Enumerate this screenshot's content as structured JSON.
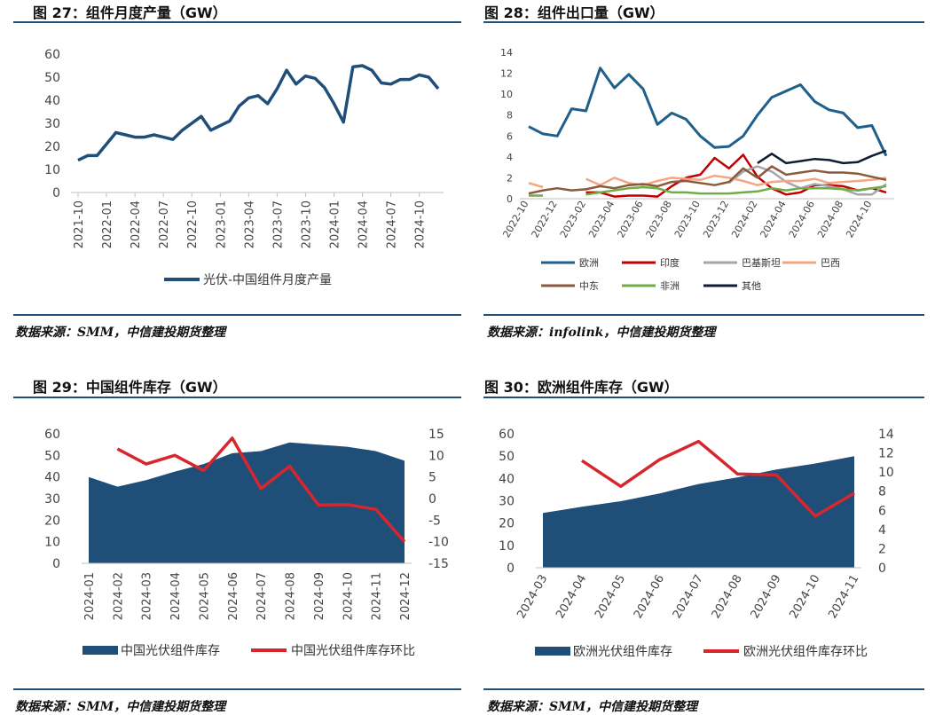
{
  "titles": {
    "c27": "图 27：组件月度产量（GW）",
    "c28": "图 28：组件出口量（GW）",
    "c29": "图 29：中国组件库存（GW）",
    "c30": "图 30：欧洲组件库存（GW）"
  },
  "sources": {
    "c27": "数据来源：SMM，中信建投期货整理",
    "c28": "数据来源：infolink，中信建投期货整理",
    "c29": "数据来源：SMM，中信建投期货整理",
    "c30": "数据来源：SMM，中信建投期货整理"
  },
  "colors": {
    "navy": "#1f4e79",
    "red": "#d7262e",
    "rule": "#1f4e79"
  },
  "chart_data": [
    {
      "id": "c27",
      "type": "line",
      "title": "图 27：组件月度产量（GW）",
      "ylim": [
        0,
        60
      ],
      "yticks": [
        0,
        10,
        20,
        30,
        40,
        50,
        60
      ],
      "x_tick_labels": [
        "2021-10",
        "2022-01",
        "2022-04",
        "2022-07",
        "2022-10",
        "2023-01",
        "2023-04",
        "2023-07",
        "2023-10",
        "2024-01",
        "2024-04",
        "2024-07",
        "2024-10"
      ],
      "x": [
        "2021-10",
        "2021-11",
        "2021-12",
        "2022-01",
        "2022-02",
        "2022-03",
        "2022-04",
        "2022-05",
        "2022-06",
        "2022-07",
        "2022-08",
        "2022-09",
        "2022-10",
        "2022-11",
        "2022-12",
        "2023-01",
        "2023-02",
        "2023-03",
        "2023-04",
        "2023-05",
        "2023-06",
        "2023-07",
        "2023-08",
        "2023-09",
        "2023-10",
        "2023-11",
        "2023-12",
        "2024-01",
        "2024-02",
        "2024-03",
        "2024-04",
        "2024-05",
        "2024-06",
        "2024-07",
        "2024-08",
        "2024-09",
        "2024-10",
        "2024-11",
        "2024-12"
      ],
      "series": [
        {
          "name": "光伏-中国组件月度产量",
          "color": "#1f4e79",
          "values": [
            14,
            16,
            16,
            21,
            26,
            25,
            24,
            24,
            25,
            24,
            23,
            27,
            30,
            33,
            27,
            29,
            31,
            37.5,
            41,
            42,
            38.5,
            45,
            53,
            47,
            50.5,
            49.5,
            45.5,
            38.5,
            30.5,
            54.5,
            55,
            53,
            47.5,
            47,
            49,
            49,
            51,
            50,
            45
          ]
        }
      ],
      "legend": "bottom"
    },
    {
      "id": "c28",
      "type": "line",
      "title": "图 28：组件出口量（GW）",
      "ylim": [
        0,
        14
      ],
      "yticks": [
        0,
        2,
        4,
        6,
        8,
        10,
        12,
        14
      ],
      "x_tick_labels": [
        "2022-10",
        "2022-12",
        "2023-02",
        "2023-04",
        "2023-06",
        "2023-08",
        "2023-10",
        "2023-12",
        "2024-02",
        "2024-04",
        "2024-06",
        "2024-08",
        "2024-10"
      ],
      "x": [
        "2022-10",
        "2022-11",
        "2022-12",
        "2023-01",
        "2023-02",
        "2023-03",
        "2023-04",
        "2023-05",
        "2023-06",
        "2023-07",
        "2023-08",
        "2023-09",
        "2023-10",
        "2023-11",
        "2023-12",
        "2024-01",
        "2024-02",
        "2024-03",
        "2024-04",
        "2024-05",
        "2024-06",
        "2024-07",
        "2024-08",
        "2024-09",
        "2024-10",
        "2024-11"
      ],
      "series": [
        {
          "name": "欧洲",
          "color": "#1f5f8b",
          "values": [
            6.9,
            6.2,
            6.0,
            8.6,
            8.4,
            12.5,
            10.6,
            11.9,
            10.5,
            7.1,
            8.2,
            7.6,
            6.0,
            4.9,
            5.0,
            6.0,
            8.0,
            9.7,
            10.3,
            10.9,
            9.3,
            8.5,
            8.2,
            6.8,
            7.0,
            4.1
          ]
        },
        {
          "name": "印度",
          "color": "#c00000",
          "values": [
            null,
            null,
            null,
            null,
            0.6,
            0.6,
            0.2,
            0.3,
            0.3,
            0.2,
            1.2,
            2.0,
            2.3,
            3.9,
            2.9,
            4.2,
            2.1,
            1.0,
            0.4,
            0.6,
            1.3,
            1.3,
            1.2,
            0.8,
            1.0,
            0.6
          ]
        },
        {
          "name": "巴基斯坦",
          "color": "#a6a6a6",
          "values": [
            null,
            null,
            null,
            null,
            null,
            null,
            null,
            null,
            null,
            null,
            null,
            null,
            null,
            null,
            1.5,
            2.6,
            3.1,
            2.6,
            1.6,
            1.0,
            1.4,
            1.2,
            0.9,
            0.4,
            0.4,
            1.4
          ]
        },
        {
          "name": "巴西",
          "color": "#f4a582",
          "values": [
            1.5,
            1.1,
            null,
            null,
            1.9,
            1.3,
            2.0,
            1.5,
            1.3,
            1.7,
            2.0,
            1.9,
            1.8,
            2.2,
            2.0,
            1.7,
            1.3,
            1.6,
            1.7,
            1.7,
            1.9,
            1.5,
            1.6,
            1.7,
            1.8,
            2.0
          ]
        },
        {
          "name": "中东",
          "color": "#8b5a3c",
          "values": [
            0.5,
            0.8,
            1.0,
            0.8,
            0.9,
            1.2,
            1.0,
            1.3,
            1.4,
            1.2,
            1.6,
            1.7,
            1.5,
            1.3,
            1.6,
            2.9,
            2.0,
            3.1,
            2.3,
            2.5,
            2.7,
            2.5,
            2.5,
            2.4,
            2.1,
            1.8
          ]
        },
        {
          "name": "非洲",
          "color": "#70ad47",
          "values": [
            0.3,
            0.3,
            null,
            null,
            0.4,
            0.6,
            0.8,
            1.0,
            1.1,
            1.0,
            0.6,
            0.6,
            0.5,
            0.5,
            0.5,
            0.6,
            0.7,
            1.0,
            0.8,
            1.0,
            1.0,
            1.0,
            0.9,
            0.8,
            1.0,
            1.2
          ]
        },
        {
          "name": "其他",
          "color": "#0d1e33",
          "values": [
            null,
            null,
            null,
            null,
            null,
            null,
            null,
            null,
            null,
            null,
            null,
            null,
            null,
            null,
            null,
            null,
            3.4,
            4.3,
            3.4,
            3.6,
            3.8,
            3.7,
            3.4,
            3.5,
            4.1,
            4.6
          ]
        }
      ],
      "legend": "bottom"
    },
    {
      "id": "c29",
      "type": "area",
      "title": "图 29：中国组件库存（GW）",
      "ylim": [
        0,
        60
      ],
      "yticks": [
        0,
        10,
        20,
        30,
        40,
        50,
        60
      ],
      "y2lim": [
        -15,
        15
      ],
      "y2ticks": [
        -15,
        -10,
        -5,
        0,
        5,
        10,
        15
      ],
      "x": [
        "2024-01",
        "2024-02",
        "2024-03",
        "2024-04",
        "2024-05",
        "2024-06",
        "2024-07",
        "2024-08",
        "2024-09",
        "2024-10",
        "2024-11",
        "2024-12"
      ],
      "series": [
        {
          "name": "中国光伏组件库存",
          "color": "#1f4e79",
          "kind": "area",
          "axis": "left",
          "values": [
            40,
            35.5,
            38.5,
            42.5,
            46,
            51,
            52,
            56,
            55,
            54,
            52,
            47.5
          ]
        },
        {
          "name": "中国光伏组件库存环比",
          "color": "#d7262e",
          "kind": "line",
          "axis": "right",
          "values": [
            null,
            11.5,
            8,
            10,
            6.5,
            14,
            2.3,
            7.5,
            -1.5,
            -1.4,
            -2.5,
            -10
          ]
        }
      ],
      "legend": "bottom"
    },
    {
      "id": "c30",
      "type": "area",
      "title": "图 30：欧洲组件库存（GW）",
      "ylim": [
        0,
        60
      ],
      "yticks": [
        0,
        10,
        20,
        30,
        40,
        50,
        60
      ],
      "y2lim": [
        0,
        14
      ],
      "y2ticks": [
        0,
        2,
        4,
        6,
        8,
        10,
        12,
        14
      ],
      "x": [
        "2024-03",
        "2024-04",
        "2024-05",
        "2024-06",
        "2024-07",
        "2024-08",
        "2024-09",
        "2024-10",
        "2024-11"
      ],
      "series": [
        {
          "name": "欧洲光伏组件库存",
          "color": "#1f4e79",
          "kind": "area",
          "axis": "left",
          "values": [
            24.5,
            27.3,
            29.8,
            33.3,
            37.5,
            40.5,
            44,
            46.7,
            50
          ]
        },
        {
          "name": "欧洲光伏组件库存环比",
          "color": "#d7262e",
          "kind": "line",
          "axis": "right",
          "values": [
            null,
            11.2,
            8.5,
            11.3,
            13.2,
            9.8,
            9.7,
            5.4,
            7.8
          ]
        }
      ],
      "legend": "bottom"
    }
  ]
}
